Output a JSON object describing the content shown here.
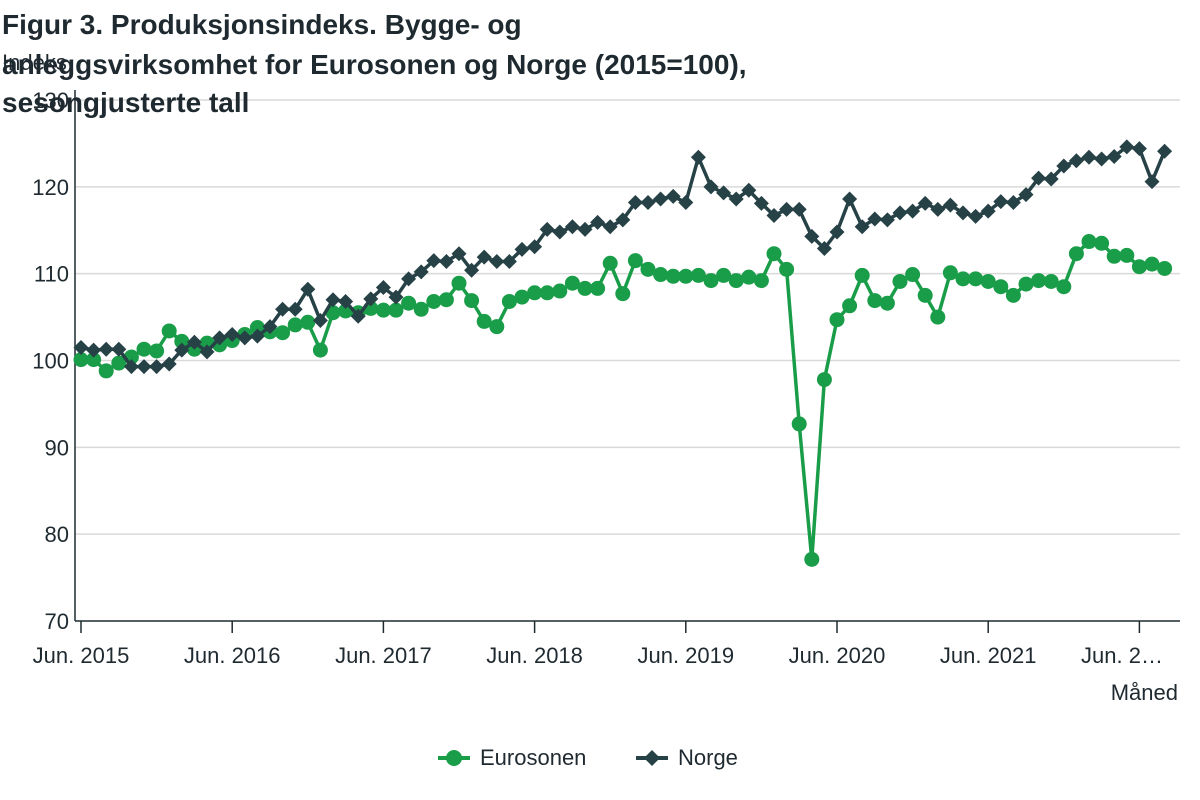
{
  "chart_data": {
    "type": "line",
    "title_lines": [
      "Figur 3. Produksjonsindeks. Bygge- og",
      "anleggsvirksomhet for Eurosonen og Norge (2015=100),",
      "sesongjusterte tall"
    ],
    "ylabel": "Indeks",
    "xlabel": "Måned",
    "ylim": [
      70,
      130
    ],
    "yticks": [
      70,
      80,
      90,
      100,
      110,
      120,
      130
    ],
    "grid": true,
    "legend_position": "bottom-center",
    "x_tick_labels": [
      "Jun. 2015",
      "Jun. 2016",
      "Jun. 2017",
      "Jun. 2018",
      "Jun. 2019",
      "Jun. 2020",
      "Jun. 2021",
      "Jun. 2…"
    ],
    "x_tick_index": [
      0,
      12,
      24,
      36,
      48,
      60,
      72,
      84
    ],
    "colors": {
      "eurosonen": "#1a9d49",
      "norge": "#274247",
      "grid": "#d9d9d9",
      "axis": "#1f2a30"
    },
    "series": [
      {
        "name": "Eurosonen",
        "marker": "circle",
        "values": [
          100.1,
          100.1,
          98.8,
          99.7,
          100.4,
          101.3,
          101.1,
          103.4,
          102.2,
          101.3,
          102.0,
          101.8,
          102.3,
          103.0,
          103.8,
          103.3,
          103.2,
          104.1,
          104.4,
          101.2,
          105.5,
          105.7,
          105.5,
          106.0,
          105.8,
          105.8,
          106.6,
          105.9,
          106.8,
          107.0,
          108.9,
          106.9,
          104.5,
          103.9,
          106.8,
          107.3,
          107.8,
          107.8,
          108.0,
          108.9,
          108.3,
          108.3,
          111.2,
          107.7,
          111.5,
          110.5,
          109.9,
          109.7,
          109.7,
          109.8,
          109.2,
          109.8,
          109.2,
          109.6,
          109.2,
          112.3,
          110.5,
          92.7,
          77.1,
          97.8,
          104.7,
          106.3,
          109.8,
          106.9,
          106.6,
          109.1,
          109.9,
          107.5,
          105.0,
          110.1,
          109.4,
          109.4,
          109.1,
          108.5,
          107.5,
          108.8,
          109.2,
          109.1,
          108.5,
          112.3,
          113.7,
          113.5,
          112.0,
          112.1,
          110.8,
          111.1,
          110.6
        ]
      },
      {
        "name": "Norge",
        "marker": "diamond",
        "values": [
          101.5,
          101.2,
          101.3,
          101.3,
          99.3,
          99.3,
          99.3,
          99.6,
          101.2,
          102.1,
          101.0,
          102.6,
          103.0,
          102.6,
          102.8,
          103.9,
          105.9,
          105.9,
          108.2,
          104.6,
          107.0,
          106.8,
          105.1,
          107.1,
          108.4,
          107.3,
          109.4,
          110.2,
          111.5,
          111.4,
          112.3,
          110.4,
          111.9,
          111.4,
          111.4,
          112.8,
          113.1,
          115.1,
          114.8,
          115.4,
          115.1,
          115.9,
          115.4,
          116.2,
          118.2,
          118.2,
          118.6,
          118.9,
          118.2,
          123.4,
          120.0,
          119.3,
          118.6,
          119.6,
          118.1,
          116.7,
          117.4,
          117.4,
          114.3,
          112.9,
          114.8,
          118.6,
          115.4,
          116.3,
          116.2,
          117.0,
          117.2,
          118.1,
          117.4,
          117.9,
          117.0,
          116.6,
          117.2,
          118.3,
          118.2,
          119.1,
          121.0,
          120.9,
          122.4,
          123.0,
          123.4,
          123.2,
          123.5,
          124.6,
          124.4,
          120.6,
          124.1
        ]
      }
    ]
  }
}
